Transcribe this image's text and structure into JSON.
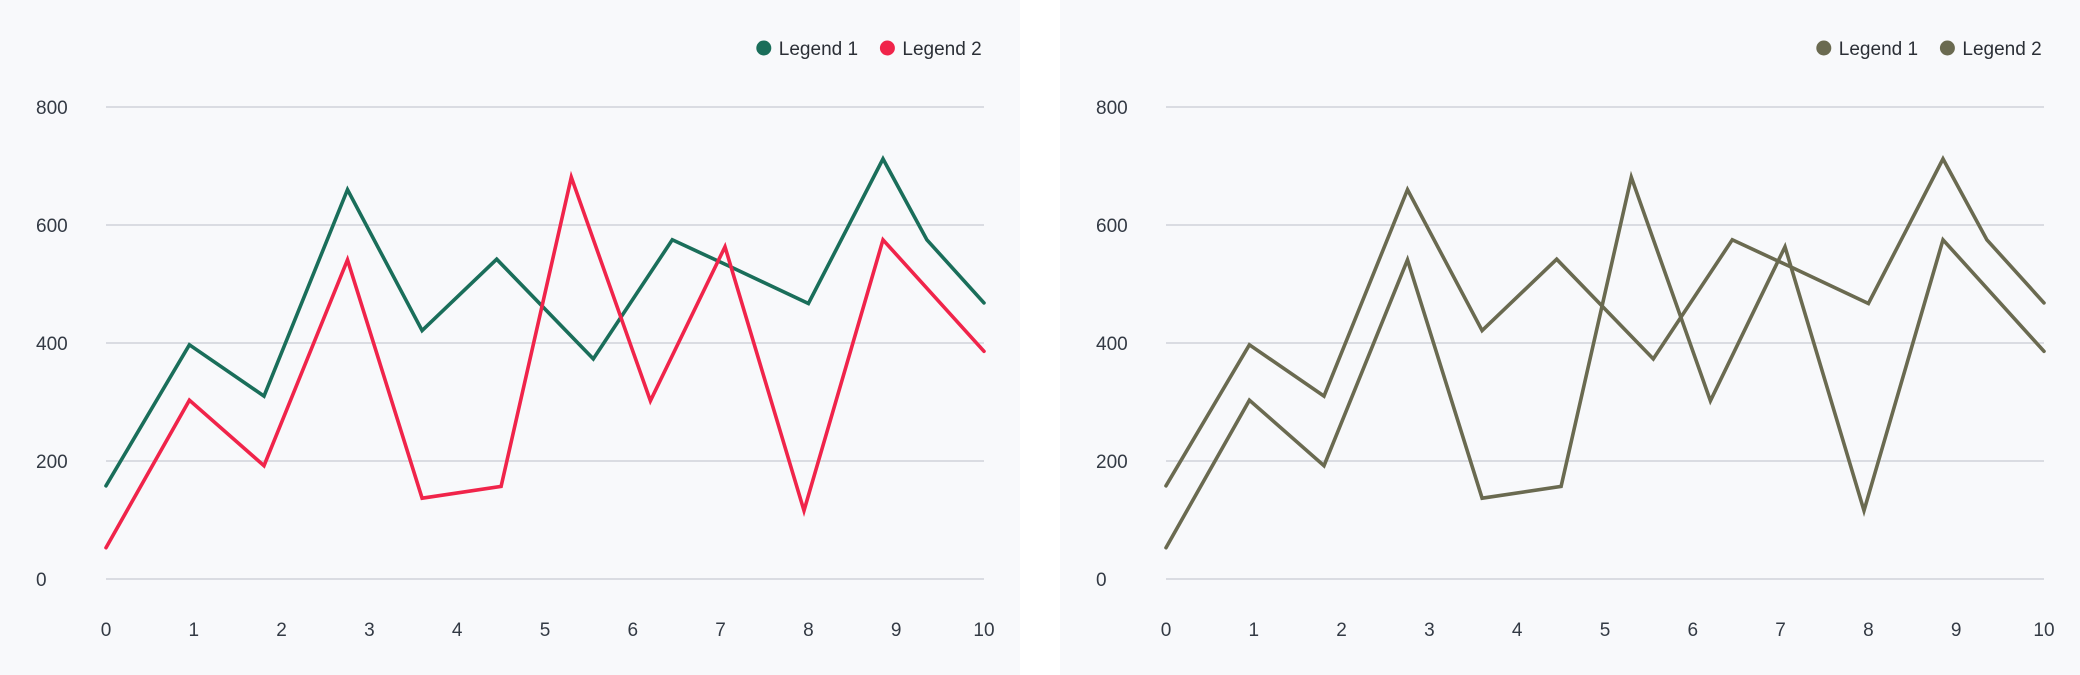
{
  "chart_data": [
    {
      "type": "line",
      "x": [
        0,
        1,
        2,
        3,
        4,
        5,
        6,
        7,
        8,
        9,
        10
      ],
      "ylim": [
        0,
        800
      ],
      "y_ticks": [
        0,
        200,
        400,
        600,
        800
      ],
      "x_ticks": [
        0,
        1,
        2,
        3,
        4,
        5,
        6,
        7,
        8,
        9,
        10
      ],
      "title": "",
      "xlabel": "",
      "ylabel": "",
      "grid": true,
      "legend_position": "top-right",
      "series": [
        {
          "name": "Legend 1",
          "color": "#1a6e5a",
          "points": [
            [
              0,
              158
            ],
            [
              0.95,
              397
            ],
            [
              1.8,
              310
            ],
            [
              2.75,
              660
            ],
            [
              3.6,
              421
            ],
            [
              4.45,
              542
            ],
            [
              5.55,
              373
            ],
            [
              6.45,
              575
            ],
            [
              7.1,
              530
            ],
            [
              8.0,
              467
            ],
            [
              8.85,
              712
            ],
            [
              9.35,
              575
            ],
            [
              10,
              468
            ]
          ]
        },
        {
          "name": "Legend 2",
          "color": "#f0244a",
          "points": [
            [
              0,
              53
            ],
            [
              0.95,
              303
            ],
            [
              1.8,
              192
            ],
            [
              2.75,
              541
            ],
            [
              3.6,
              137
            ],
            [
              4.5,
              157
            ],
            [
              5.3,
              681
            ],
            [
              6.2,
              302
            ],
            [
              7.05,
              563
            ],
            [
              7.95,
              116
            ],
            [
              8.85,
              575
            ],
            [
              10,
              386
            ]
          ]
        }
      ]
    },
    {
      "type": "line",
      "x": [
        0,
        1,
        2,
        3,
        4,
        5,
        6,
        7,
        8,
        9,
        10
      ],
      "ylim": [
        0,
        800
      ],
      "y_ticks": [
        0,
        200,
        400,
        600,
        800
      ],
      "x_ticks": [
        0,
        1,
        2,
        3,
        4,
        5,
        6,
        7,
        8,
        9,
        10
      ],
      "title": "",
      "xlabel": "",
      "ylabel": "",
      "grid": true,
      "legend_position": "top-right",
      "series": [
        {
          "name": "Legend 1",
          "color": "#6a6a50",
          "points": [
            [
              0,
              158
            ],
            [
              0.95,
              397
            ],
            [
              1.8,
              310
            ],
            [
              2.75,
              660
            ],
            [
              3.6,
              421
            ],
            [
              4.45,
              542
            ],
            [
              5.55,
              373
            ],
            [
              6.45,
              575
            ],
            [
              7.1,
              530
            ],
            [
              8.0,
              467
            ],
            [
              8.85,
              712
            ],
            [
              9.35,
              575
            ],
            [
              10,
              468
            ]
          ]
        },
        {
          "name": "Legend 2",
          "color": "#6a6a50",
          "points": [
            [
              0,
              53
            ],
            [
              0.95,
              303
            ],
            [
              1.8,
              192
            ],
            [
              2.75,
              541
            ],
            [
              3.6,
              137
            ],
            [
              4.5,
              157
            ],
            [
              5.3,
              681
            ],
            [
              6.2,
              302
            ],
            [
              7.05,
              563
            ],
            [
              7.95,
              116
            ],
            [
              8.85,
              575
            ],
            [
              10,
              386
            ]
          ]
        }
      ]
    }
  ]
}
